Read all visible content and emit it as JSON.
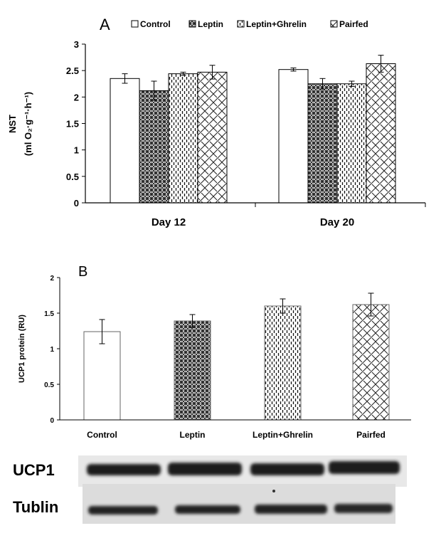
{
  "chart_data": [
    {
      "panel": "A",
      "type": "bar",
      "title": "",
      "categories": [
        "Day 12",
        "Day 20"
      ],
      "series": [
        {
          "name": "Control",
          "values": [
            2.35,
            2.52
          ],
          "errors": [
            0.09,
            0.03
          ],
          "pattern": "white"
        },
        {
          "name": "Leptin",
          "values": [
            2.12,
            2.25
          ],
          "errors": [
            0.18,
            0.1
          ],
          "pattern": "grid"
        },
        {
          "name": "Leptin+Ghrelin",
          "values": [
            2.44,
            2.25
          ],
          "errors": [
            0.03,
            0.05
          ],
          "pattern": "dashes"
        },
        {
          "name": "Pairfed",
          "values": [
            2.47,
            2.63
          ],
          "errors": [
            0.13,
            0.16
          ],
          "pattern": "weave"
        }
      ],
      "ylabel_line1": "NST",
      "ylabel_line2": "(ml O₂·g⁻¹·h⁻¹)",
      "xlabel": "",
      "ylim": [
        0,
        3
      ],
      "yticks": [
        "0",
        "0.5",
        "1",
        "1.5",
        "2",
        "2.5",
        "3"
      ],
      "legend_position": "top"
    },
    {
      "panel": "B",
      "type": "bar",
      "title": "",
      "categories": [
        "Control",
        "Leptin",
        "Leptin+Ghrelin",
        "Pairfed"
      ],
      "values": [
        1.24,
        1.39,
        1.6,
        1.62
      ],
      "errors": [
        0.17,
        0.09,
        0.1,
        0.16
      ],
      "patterns": [
        "white",
        "grid",
        "dashes",
        "weave"
      ],
      "ylabel": "UCP1 protein (RU)",
      "xlabel": "",
      "ylim": [
        0,
        2
      ],
      "yticks": [
        "0",
        "0.5",
        "1",
        "1.5",
        "2"
      ]
    }
  ],
  "western_blot": {
    "rows": [
      {
        "label": "UCP1"
      },
      {
        "label": "Tublin"
      }
    ]
  }
}
